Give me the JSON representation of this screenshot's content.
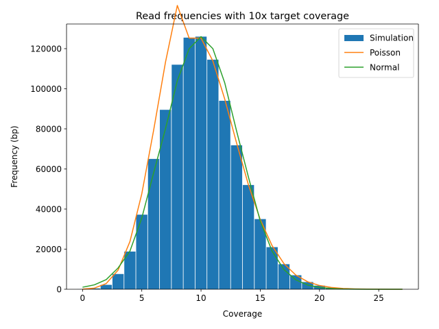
{
  "chart_data": {
    "type": "bar",
    "title": "Read frequencies with 10x target coverage",
    "xlabel": "Coverage",
    "ylabel": "Frequency (bp)",
    "xlim": [
      -1.35,
      28.35
    ],
    "ylim": [
      0,
      132300
    ],
    "xticks": [
      0,
      5,
      10,
      15,
      20,
      25
    ],
    "yticks": [
      0,
      20000,
      40000,
      60000,
      80000,
      100000,
      120000
    ],
    "legend_position": "top-right",
    "bar_width": 0.95,
    "series": [
      {
        "name": "Simulation",
        "kind": "bar",
        "color": "#1f77b4",
        "x": [
          0,
          1,
          2,
          3,
          4,
          5,
          6,
          7,
          8,
          9,
          10,
          11,
          12,
          13,
          14,
          15,
          16,
          17,
          18,
          19,
          20,
          21,
          22,
          23,
          24,
          25,
          26,
          27
        ],
        "values": [
          40,
          400,
          2200,
          7600,
          18800,
          37200,
          65000,
          89500,
          112000,
          125500,
          126000,
          114500,
          94000,
          71800,
          52000,
          35000,
          21000,
          12500,
          7000,
          3600,
          1800,
          800,
          300,
          120,
          40,
          15,
          5,
          2
        ]
      },
      {
        "name": "Poisson",
        "kind": "line",
        "color": "#ff7f0e",
        "x": [
          0,
          1,
          2,
          3,
          4,
          5,
          6,
          7,
          8,
          9,
          10,
          11,
          12,
          13,
          14,
          15,
          16,
          17,
          18,
          19,
          20,
          21,
          22,
          23,
          24,
          25,
          26,
          27
        ],
        "values": [
          57,
          571,
          2853,
          9511,
          23776,
          47553,
          79255,
          113221,
          141527,
          125250,
          125250,
          113864,
          94886,
          72989,
          52135,
          34757,
          21723,
          12778,
          7099,
          3736,
          1868,
          890,
          404,
          176,
          73,
          29,
          11,
          4
        ]
      },
      {
        "name": "Normal",
        "kind": "line",
        "color": "#2ca02c",
        "x": [
          0,
          1,
          2,
          3,
          4,
          5,
          6,
          7,
          8,
          9,
          10,
          11,
          12,
          13,
          14,
          15,
          16,
          17,
          18,
          19,
          20,
          21,
          22,
          23,
          24,
          25,
          26,
          27
        ],
        "values": [
          1000,
          2200,
          4800,
          10600,
          19000,
          35500,
          58000,
          80000,
          104000,
          120000,
          126000,
          120000,
          103000,
          79000,
          56000,
          34000,
          19000,
          9800,
          4700,
          2100,
          900,
          360,
          130,
          40,
          12,
          4,
          1,
          0
        ]
      }
    ]
  }
}
